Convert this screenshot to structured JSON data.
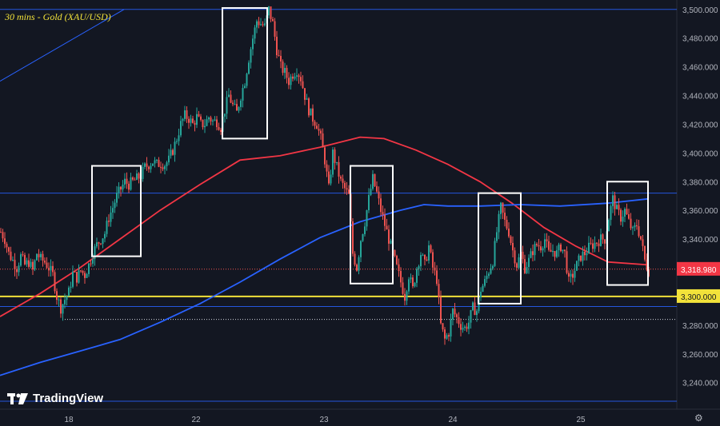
{
  "chart_data": {
    "type": "candlestick",
    "title": "30 mins - Gold (XAU/USD)",
    "watermark": "TradingView",
    "x_ticks": [
      "18",
      "22",
      "23",
      "24",
      "25"
    ],
    "y_ticks": [
      "3,500.000",
      "3,480.000",
      "3,460.000",
      "3,440.000",
      "3,420.000",
      "3,400.000",
      "3,380.000",
      "3,360.000",
      "3,340.000",
      "3,320.000",
      "3,300.000",
      "3,280.000",
      "3,260.000",
      "3,240.000"
    ],
    "ylim": [
      3222,
      3506
    ],
    "current_price": {
      "value": 3318.98,
      "label": "3,318.980"
    },
    "support_line": {
      "value": 3300,
      "label": "3,300.000"
    },
    "horizontal_levels": [
      3500,
      3372,
      3293,
      3227
    ],
    "dotted_levels": [
      3319,
      3284
    ],
    "close_path": [
      [
        0,
        3345
      ],
      [
        5,
        3340
      ],
      [
        10,
        3330
      ],
      [
        15,
        3325
      ],
      [
        20,
        3320
      ],
      [
        25,
        3328
      ],
      [
        30,
        3322
      ],
      [
        35,
        3324
      ],
      [
        40,
        3318
      ],
      [
        45,
        3330
      ],
      [
        50,
        3326
      ],
      [
        55,
        3324
      ],
      [
        60,
        3320
      ],
      [
        65,
        3315
      ],
      [
        70,
        3300
      ],
      [
        75,
        3292
      ],
      [
        80,
        3298
      ],
      [
        85,
        3303
      ],
      [
        90,
        3316
      ],
      [
        95,
        3313
      ],
      [
        100,
        3318
      ],
      [
        105,
        3315
      ],
      [
        110,
        3322
      ],
      [
        115,
        3330
      ],
      [
        120,
        3336
      ],
      [
        125,
        3340
      ],
      [
        130,
        3344
      ],
      [
        135,
        3355
      ],
      [
        140,
        3362
      ],
      [
        145,
        3370
      ],
      [
        150,
        3375
      ],
      [
        155,
        3380
      ],
      [
        160,
        3378
      ],
      [
        165,
        3380
      ],
      [
        170,
        3382
      ],
      [
        175,
        3384
      ],
      [
        180,
        3390
      ],
      [
        185,
        3392
      ],
      [
        190,
        3394
      ],
      [
        195,
        3392
      ],
      [
        200,
        3393
      ],
      [
        205,
        3392
      ],
      [
        210,
        3395
      ],
      [
        215,
        3402
      ],
      [
        220,
        3410
      ],
      [
        225,
        3420
      ],
      [
        230,
        3426
      ],
      [
        235,
        3424
      ],
      [
        240,
        3420
      ],
      [
        245,
        3425
      ],
      [
        250,
        3420
      ],
      [
        255,
        3420
      ],
      [
        260,
        3425
      ],
      [
        265,
        3422
      ],
      [
        270,
        3422
      ],
      [
        275,
        3418
      ],
      [
        280,
        3430
      ],
      [
        285,
        3440
      ],
      [
        290,
        3433
      ],
      [
        295,
        3428
      ],
      [
        300,
        3440
      ],
      [
        305,
        3450
      ],
      [
        310,
        3466
      ],
      [
        315,
        3480
      ],
      [
        320,
        3492
      ],
      [
        325,
        3490
      ],
      [
        330,
        3488
      ],
      [
        335,
        3500
      ],
      [
        340,
        3490
      ],
      [
        345,
        3472
      ],
      [
        350,
        3460
      ],
      [
        355,
        3456
      ],
      [
        360,
        3450
      ],
      [
        365,
        3455
      ],
      [
        370,
        3458
      ],
      [
        375,
        3452
      ],
      [
        380,
        3440
      ],
      [
        385,
        3430
      ],
      [
        390,
        3424
      ],
      [
        395,
        3420
      ],
      [
        400,
        3410
      ],
      [
        405,
        3395
      ],
      [
        410,
        3375
      ],
      [
        415,
        3400
      ],
      [
        420,
        3390
      ],
      [
        425,
        3380
      ],
      [
        430,
        3375
      ],
      [
        435,
        3370
      ],
      [
        440,
        3330
      ],
      [
        445,
        3320
      ],
      [
        450,
        3340
      ],
      [
        455,
        3352
      ],
      [
        460,
        3368
      ],
      [
        465,
        3382
      ],
      [
        470,
        3372
      ],
      [
        475,
        3360
      ],
      [
        480,
        3350
      ],
      [
        485,
        3340
      ],
      [
        490,
        3330
      ],
      [
        495,
        3320
      ],
      [
        500,
        3310
      ],
      [
        505,
        3300
      ],
      [
        510,
        3315
      ],
      [
        515,
        3305
      ],
      [
        520,
        3320
      ],
      [
        525,
        3330
      ],
      [
        530,
        3322
      ],
      [
        535,
        3335
      ],
      [
        540,
        3320
      ],
      [
        545,
        3312
      ],
      [
        550,
        3280
      ],
      [
        555,
        3270
      ],
      [
        560,
        3275
      ],
      [
        565,
        3290
      ],
      [
        570,
        3285
      ],
      [
        575,
        3280
      ],
      [
        580,
        3278
      ],
      [
        585,
        3282
      ],
      [
        590,
        3292
      ],
      [
        595,
        3290
      ],
      [
        600,
        3305
      ],
      [
        605,
        3310
      ],
      [
        610,
        3318
      ],
      [
        615,
        3325
      ],
      [
        620,
        3345
      ],
      [
        625,
        3362
      ],
      [
        630,
        3352
      ],
      [
        635,
        3345
      ],
      [
        640,
        3332
      ],
      [
        645,
        3322
      ],
      [
        650,
        3330
      ],
      [
        655,
        3320
      ],
      [
        660,
        3325
      ],
      [
        665,
        3332
      ],
      [
        670,
        3336
      ],
      [
        675,
        3335
      ],
      [
        680,
        3340
      ],
      [
        685,
        3330
      ],
      [
        690,
        3332
      ],
      [
        695,
        3330
      ],
      [
        700,
        3335
      ],
      [
        705,
        3330
      ],
      [
        710,
        3310
      ],
      [
        715,
        3315
      ],
      [
        720,
        3322
      ],
      [
        725,
        3328
      ],
      [
        730,
        3330
      ],
      [
        735,
        3334
      ],
      [
        740,
        3336
      ],
      [
        745,
        3338
      ],
      [
        750,
        3340
      ],
      [
        755,
        3340
      ],
      [
        760,
        3355
      ],
      [
        765,
        3368
      ],
      [
        770,
        3360
      ],
      [
        775,
        3355
      ],
      [
        780,
        3360
      ],
      [
        785,
        3352
      ],
      [
        790,
        3345
      ],
      [
        795,
        3350
      ],
      [
        800,
        3340
      ],
      [
        805,
        3325
      ],
      [
        810,
        3318
      ]
    ],
    "series": [
      {
        "name": "",
        "color": "#f23645",
        "points": [
          [
            0,
            3286
          ],
          [
            50,
            3302
          ],
          [
            100,
            3320
          ],
          [
            150,
            3340
          ],
          [
            200,
            3360
          ],
          [
            250,
            3378
          ],
          [
            300,
            3395
          ],
          [
            350,
            3398
          ],
          [
            400,
            3404
          ],
          [
            450,
            3411
          ],
          [
            480,
            3410
          ],
          [
            520,
            3402
          ],
          [
            560,
            3392
          ],
          [
            600,
            3380
          ],
          [
            640,
            3365
          ],
          [
            680,
            3348
          ],
          [
            720,
            3335
          ],
          [
            760,
            3324
          ],
          [
            810,
            3322
          ]
        ]
      },
      {
        "name": "",
        "color": "#2962ff",
        "points": [
          [
            0,
            3245
          ],
          [
            50,
            3254
          ],
          [
            100,
            3262
          ],
          [
            150,
            3270
          ],
          [
            200,
            3282
          ],
          [
            250,
            3295
          ],
          [
            300,
            3310
          ],
          [
            350,
            3326
          ],
          [
            400,
            3341
          ],
          [
            450,
            3352
          ],
          [
            500,
            3360
          ],
          [
            530,
            3364
          ],
          [
            560,
            3363
          ],
          [
            600,
            3363
          ],
          [
            650,
            3364
          ],
          [
            700,
            3363
          ],
          [
            760,
            3365
          ],
          [
            810,
            3368
          ]
        ]
      }
    ],
    "highlight_boxes": [
      {
        "x0": 115,
        "x1": 176,
        "y0": 3328,
        "y1": 3391
      },
      {
        "x0": 278,
        "x1": 334,
        "y0": 3410,
        "y1": 3501
      },
      {
        "x0": 438,
        "x1": 491,
        "y0": 3309,
        "y1": 3391
      },
      {
        "x0": 598,
        "x1": 651,
        "y0": 3295,
        "y1": 3372
      },
      {
        "x0": 759,
        "x1": 810,
        "y0": 3308,
        "y1": 3380
      }
    ],
    "colors": {
      "up": "#26a69a",
      "down": "#ef5350",
      "background": "#131722",
      "text": "#b2b5be",
      "support": "#f2e23a",
      "level": "#2962ff"
    }
  }
}
